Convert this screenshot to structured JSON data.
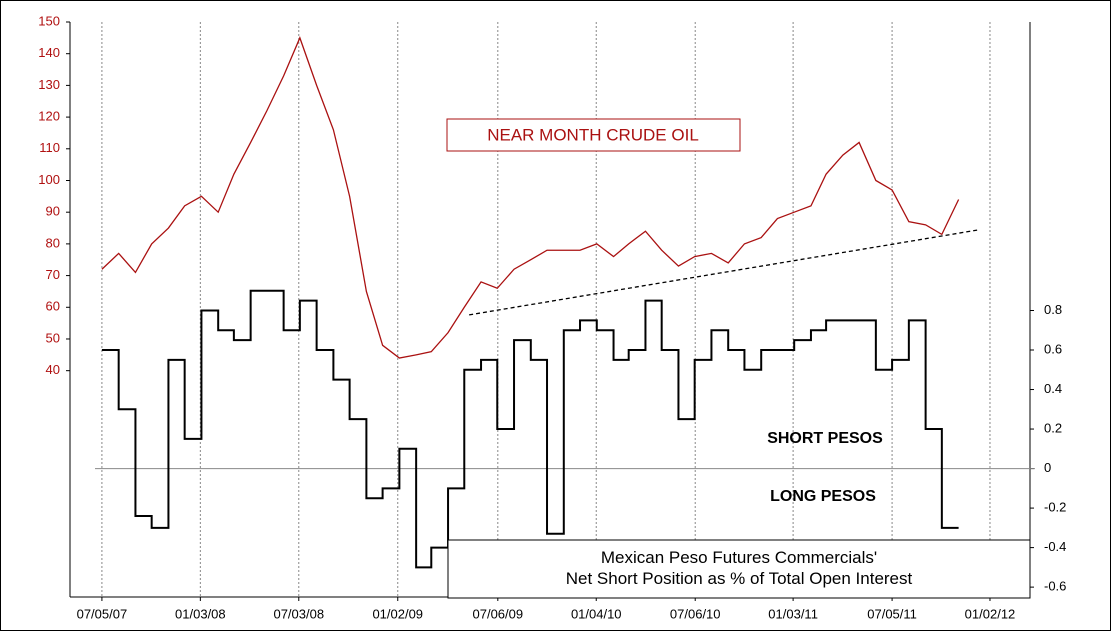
{
  "chart_data": {
    "type": "line",
    "xlim": [
      "2007-05-07",
      "2012-03-16"
    ],
    "xticks": [
      {
        "value": "2007-07-05",
        "label": "07/05/07"
      },
      {
        "value": "2008-01-03",
        "label": "01/03/08"
      },
      {
        "value": "2008-07-03",
        "label": "07/03/08"
      },
      {
        "value": "2009-01-02",
        "label": "01/02/09"
      },
      {
        "value": "2009-07-06",
        "label": "07/06/09"
      },
      {
        "value": "2010-01-04",
        "label": "01/04/10"
      },
      {
        "value": "2010-07-06",
        "label": "07/06/10"
      },
      {
        "value": "2011-01-03",
        "label": "01/03/11"
      },
      {
        "value": "2011-07-05",
        "label": "07/05/11"
      },
      {
        "value": "2012-01-02",
        "label": "01/02/12"
      }
    ],
    "ylim": [
      -31.4,
      150
    ],
    "yticks": [
      40,
      50,
      60,
      70,
      80,
      90,
      100,
      110,
      120,
      130,
      140,
      150
    ],
    "y2lim": [
      -0.65,
      2.26
    ],
    "y2ticks": [
      -0.6,
      -0.4,
      -0.2,
      0,
      0.2,
      0.4,
      0.6,
      0.8
    ],
    "x_grid": true,
    "zero_line": true,
    "axis_color": "#b01010",
    "x": [
      "2007-07-05",
      "2007-08-05",
      "2007-09-05",
      "2007-10-05",
      "2007-11-05",
      "2007-12-05",
      "2008-01-05",
      "2008-02-05",
      "2008-03-05",
      "2008-04-05",
      "2008-05-05",
      "2008-06-05",
      "2008-07-05",
      "2008-08-05",
      "2008-09-05",
      "2008-10-05",
      "2008-11-05",
      "2008-12-05",
      "2009-01-05",
      "2009-02-05",
      "2009-03-05",
      "2009-04-05",
      "2009-05-05",
      "2009-06-05",
      "2009-07-05",
      "2009-08-05",
      "2009-09-05",
      "2009-10-05",
      "2009-11-05",
      "2009-12-05",
      "2010-01-05",
      "2010-02-05",
      "2010-03-05",
      "2010-04-05",
      "2010-05-05",
      "2010-06-05",
      "2010-07-05",
      "2010-08-05",
      "2010-09-05",
      "2010-10-05",
      "2010-11-05",
      "2010-12-05",
      "2011-01-05",
      "2011-02-05",
      "2011-03-05",
      "2011-04-05",
      "2011-05-05",
      "2011-06-05",
      "2011-07-05",
      "2011-08-05",
      "2011-09-05",
      "2011-10-05",
      "2011-11-05"
    ],
    "series": [
      {
        "name": "NEAR MONTH CRUDE OIL",
        "color": "#aa1111",
        "axis": "y",
        "values": [
          72,
          77,
          71,
          80,
          85,
          92,
          95,
          90,
          102,
          112,
          122,
          133,
          145,
          130,
          116,
          95,
          65,
          48,
          44,
          45,
          46,
          52,
          60,
          68,
          66,
          72,
          75,
          78,
          78,
          78,
          80,
          76,
          80,
          84,
          78,
          73,
          76,
          77,
          74,
          80,
          82,
          88,
          90,
          92,
          102,
          108,
          112,
          100,
          97,
          87,
          86,
          83,
          94
        ]
      },
      {
        "name": "Mexican Peso Futures Commercials' Net Short Position as % of Total Open Interest",
        "color": "#000000",
        "axis": "y2",
        "step": true,
        "values": [
          0.6,
          0.3,
          -0.24,
          -0.3,
          0.55,
          0.15,
          0.8,
          0.7,
          0.65,
          0.9,
          0.9,
          0.7,
          0.85,
          0.6,
          0.45,
          0.25,
          -0.15,
          -0.1,
          0.1,
          -0.5,
          -0.4,
          -0.1,
          0.5,
          0.55,
          0.2,
          0.65,
          0.55,
          -0.33,
          0.7,
          0.75,
          0.7,
          0.55,
          0.6,
          0.85,
          0.6,
          0.25,
          0.55,
          0.7,
          0.6,
          0.5,
          0.6,
          0.6,
          0.65,
          0.7,
          0.75,
          0.75,
          0.75,
          0.5,
          0.55,
          0.75,
          0.2,
          -0.3,
          -0.3
        ]
      }
    ],
    "trendline": {
      "x": [
        "2009-05-14",
        "2011-12-11"
      ],
      "values": [
        57.6,
        84.4
      ]
    },
    "annotations": [
      "NEAR MONTH CRUDE OIL",
      "SHORT PESOS",
      "LONG PESOS"
    ]
  }
}
